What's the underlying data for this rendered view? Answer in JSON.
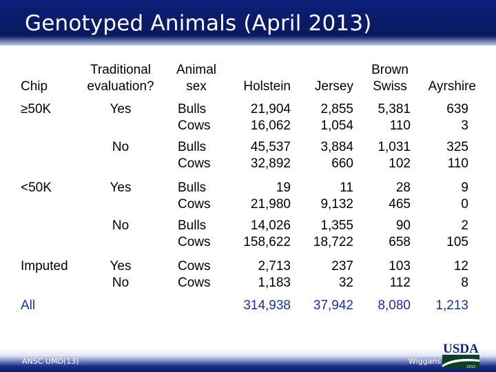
{
  "slide": {
    "title": "Genotyped Animals (April 2013)",
    "footer_left": "ANSC UMD(13)",
    "footer_right": "Wiggans",
    "logo_text": "USDA",
    "logo_year": "2013"
  },
  "colors": {
    "title_bar": "#0a1f7a",
    "highlight_text": "#1a2f9a"
  },
  "table": {
    "headers": {
      "chip": "Chip",
      "trad_1": "Traditional",
      "trad_2": "evaluation?",
      "sex_1": "Animal",
      "sex_2": "sex",
      "holstein": "Holstein",
      "jersey": "Jersey",
      "brown_1": "Brown",
      "brown_2": "Swiss",
      "ayrshire": "Ayrshire"
    },
    "rows": [
      {
        "chip": "≥50K",
        "trad": "Yes",
        "sex": [
          "Bulls",
          "Cows"
        ],
        "holstein": [
          "21,904",
          "16,062"
        ],
        "jersey": [
          "2,855",
          "1,054"
        ],
        "brown": [
          "5,381",
          "110"
        ],
        "ayrshire": [
          "639",
          "3"
        ]
      },
      {
        "chip": "",
        "trad": "No",
        "sex": [
          "Bulls",
          "Cows"
        ],
        "holstein": [
          "45,537",
          "32,892"
        ],
        "jersey": [
          "3,884",
          "660"
        ],
        "brown": [
          "1,031",
          "102"
        ],
        "ayrshire": [
          "325",
          "110"
        ]
      },
      {
        "chip": "<50K",
        "trad": "Yes",
        "sex": [
          "Bulls",
          "Cows"
        ],
        "holstein": [
          "19",
          "21,980"
        ],
        "jersey": [
          "11",
          "9,132"
        ],
        "brown": [
          "28",
          "465"
        ],
        "ayrshire": [
          "9",
          "0"
        ]
      },
      {
        "chip": "",
        "trad": "No",
        "sex": [
          "Bulls",
          "Cows"
        ],
        "holstein": [
          "14,026",
          "158,622"
        ],
        "jersey": [
          "1,355",
          "18,722"
        ],
        "brown": [
          "90",
          "658"
        ],
        "ayrshire": [
          "2",
          "105"
        ]
      },
      {
        "chip": "Imputed",
        "trad": [
          "Yes",
          "No"
        ],
        "sex": [
          "Cows",
          "Cows"
        ],
        "holstein": [
          "2,713",
          "1,183"
        ],
        "jersey": [
          "237",
          "32"
        ],
        "brown": [
          "103",
          "112"
        ],
        "ayrshire": [
          "12",
          "8"
        ]
      }
    ],
    "total": {
      "label": "All",
      "holstein": "314,938",
      "jersey": "37,942",
      "brown": "8,080",
      "ayrshire": "1,213"
    }
  }
}
